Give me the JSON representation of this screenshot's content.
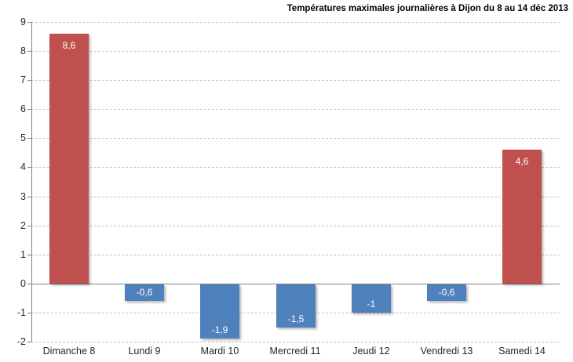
{
  "chart_data": {
    "type": "bar",
    "title": "Températures maximales journalières à Dijon  du 8 au 14 déc 2013",
    "xlabel": "",
    "ylabel": "",
    "categories": [
      "Dimanche 8",
      "Lundi 9",
      "Mardi 10",
      "Mercredi 11",
      "Jeudi 12",
      "Vendredi 13",
      "Samedi 14"
    ],
    "values": [
      8.6,
      -0.6,
      -1.9,
      -1.5,
      -1,
      -0.6,
      4.6
    ],
    "value_labels": [
      "8,6",
      "-0,6",
      "-1,9",
      "-1,5",
      "-1",
      "-0,6",
      "4,6"
    ],
    "ylim": [
      -2,
      9
    ],
    "ytick_step": 1,
    "yticks": [
      9,
      8,
      7,
      6,
      5,
      4,
      3,
      2,
      1,
      0,
      -1,
      -2
    ],
    "grid": "horizontal-dashed",
    "legend": "none",
    "colors": {
      "positive_bar": "#C0504D",
      "negative_bar": "#4F81BD",
      "bar_value_label": "#FFFFFF",
      "axis_line": "#7F7F7F",
      "gridline": "#C3C3C3",
      "tick_label": "#262626",
      "title": "#000000",
      "background": "#FFFFFF"
    }
  }
}
